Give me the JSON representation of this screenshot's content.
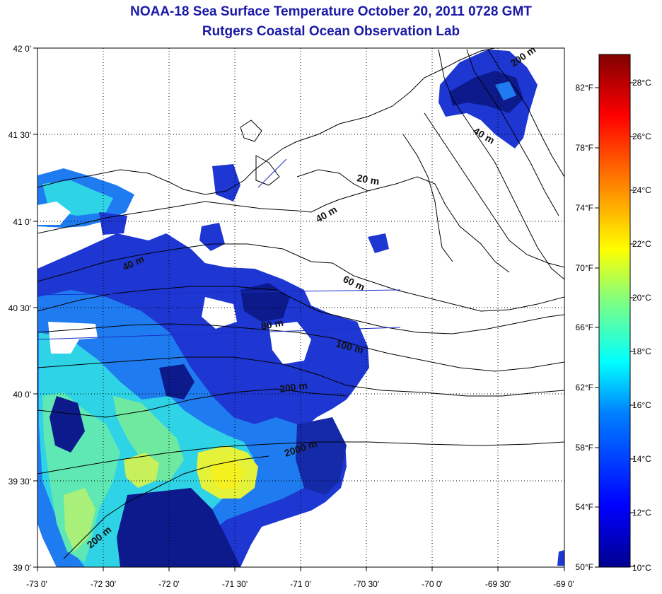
{
  "title_line1": "NOAA-18 Sea Surface Temperature October 20, 2011 0728 GMT",
  "title_line2": "Rutgers Coastal Ocean Observation Lab",
  "map": {
    "lon_labels": [
      "-73 0'",
      "-72 30'",
      "-72 0'",
      "-71 30'",
      "-71 0'",
      "-70 30'",
      "-70 0'",
      "-69 30'",
      "-69 0'"
    ],
    "lat_labels": [
      "42 0'",
      "41 30'",
      "41 0'",
      "40 30'",
      "40 0'",
      "39 30'",
      "39 0'"
    ],
    "lon_range": [
      -73,
      -69
    ],
    "lat_range": [
      39,
      42
    ],
    "depth_labels": [
      "200 m",
      "40 m",
      "20 m",
      "40 m",
      "40 m",
      "60 m",
      "80 m",
      "100 m",
      "200 m",
      "2000 m",
      "200 m"
    ],
    "colors": {
      "land": "#ffffff",
      "contour": "#000000",
      "grid": "#000000",
      "cold": "#0c1a8c",
      "title": "#1a1aa6"
    }
  },
  "colorbar": {
    "celsius_labels": [
      "28°C",
      "26°C",
      "24°C",
      "22°C",
      "20°C",
      "18°C",
      "16°C",
      "14°C",
      "12°C",
      "10°C"
    ],
    "fahrenheit_labels": [
      "82°F",
      "78°F",
      "74°F",
      "70°F",
      "66°F",
      "62°F",
      "58°F",
      "54°F",
      "50°F"
    ],
    "range_c": [
      10,
      29
    ],
    "range_f": [
      50,
      84
    ],
    "colors": [
      "#00008f",
      "#0000ff",
      "#0080ff",
      "#00ffff",
      "#80ff80",
      "#ffff00",
      "#ff8000",
      "#ff0000",
      "#800000"
    ]
  }
}
